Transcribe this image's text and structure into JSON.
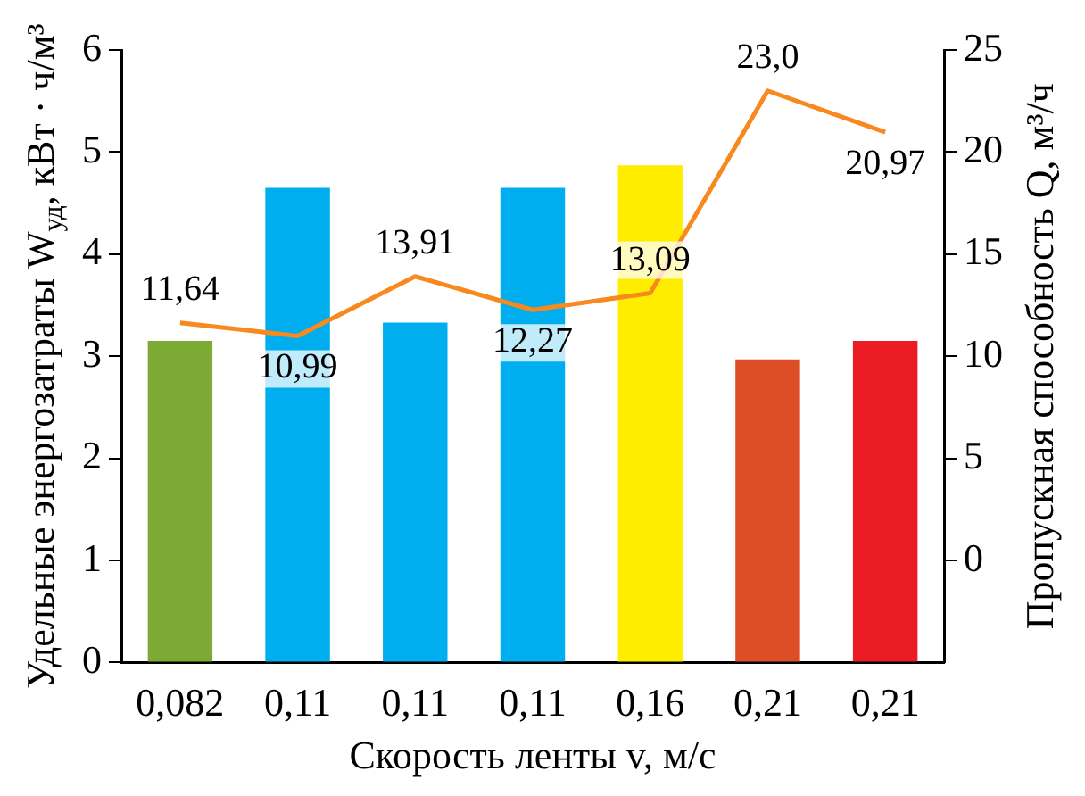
{
  "chart_data": {
    "type": "bar",
    "xlabel": "Скорость ленты v, м/с",
    "ylabel": "Удельные энергозатраты W$_{уд}$, кВт · ч/м³",
    "y2label": "Пропускная способность Q, м³/ч",
    "categories": [
      "0,082",
      "0,11",
      "0,11",
      "0,11",
      "0,16",
      "0,21",
      "0,21"
    ],
    "series": [
      {
        "colors": [
          "#7caa35",
          "#00aeef",
          "#00aeef",
          "#00aeef",
          "#ffed00",
          "#dc4e26",
          "#ec1c24"
        ],
        "values": [
          3.15,
          4.65,
          3.33,
          4.65,
          4.87,
          2.97,
          3.15
        ]
      },
      {
        "type": "line",
        "axis": "y2",
        "color": "#f7891f",
        "values": [
          11.64,
          10.99,
          13.91,
          12.27,
          13.09,
          23.0,
          20.97
        ],
        "value_labels": [
          "11,64",
          "10,99",
          "13,91",
          "12,27",
          "13,09",
          "23,0",
          "20,97"
        ]
      }
    ],
    "ylim": [
      0,
      6
    ],
    "yticks": [
      0,
      1,
      2,
      3,
      4,
      5,
      6
    ],
    "y2lim": [
      -5,
      25
    ],
    "y2ticks": [
      0,
      5,
      10,
      15,
      20,
      25
    ],
    "grid": false,
    "legend": false
  }
}
